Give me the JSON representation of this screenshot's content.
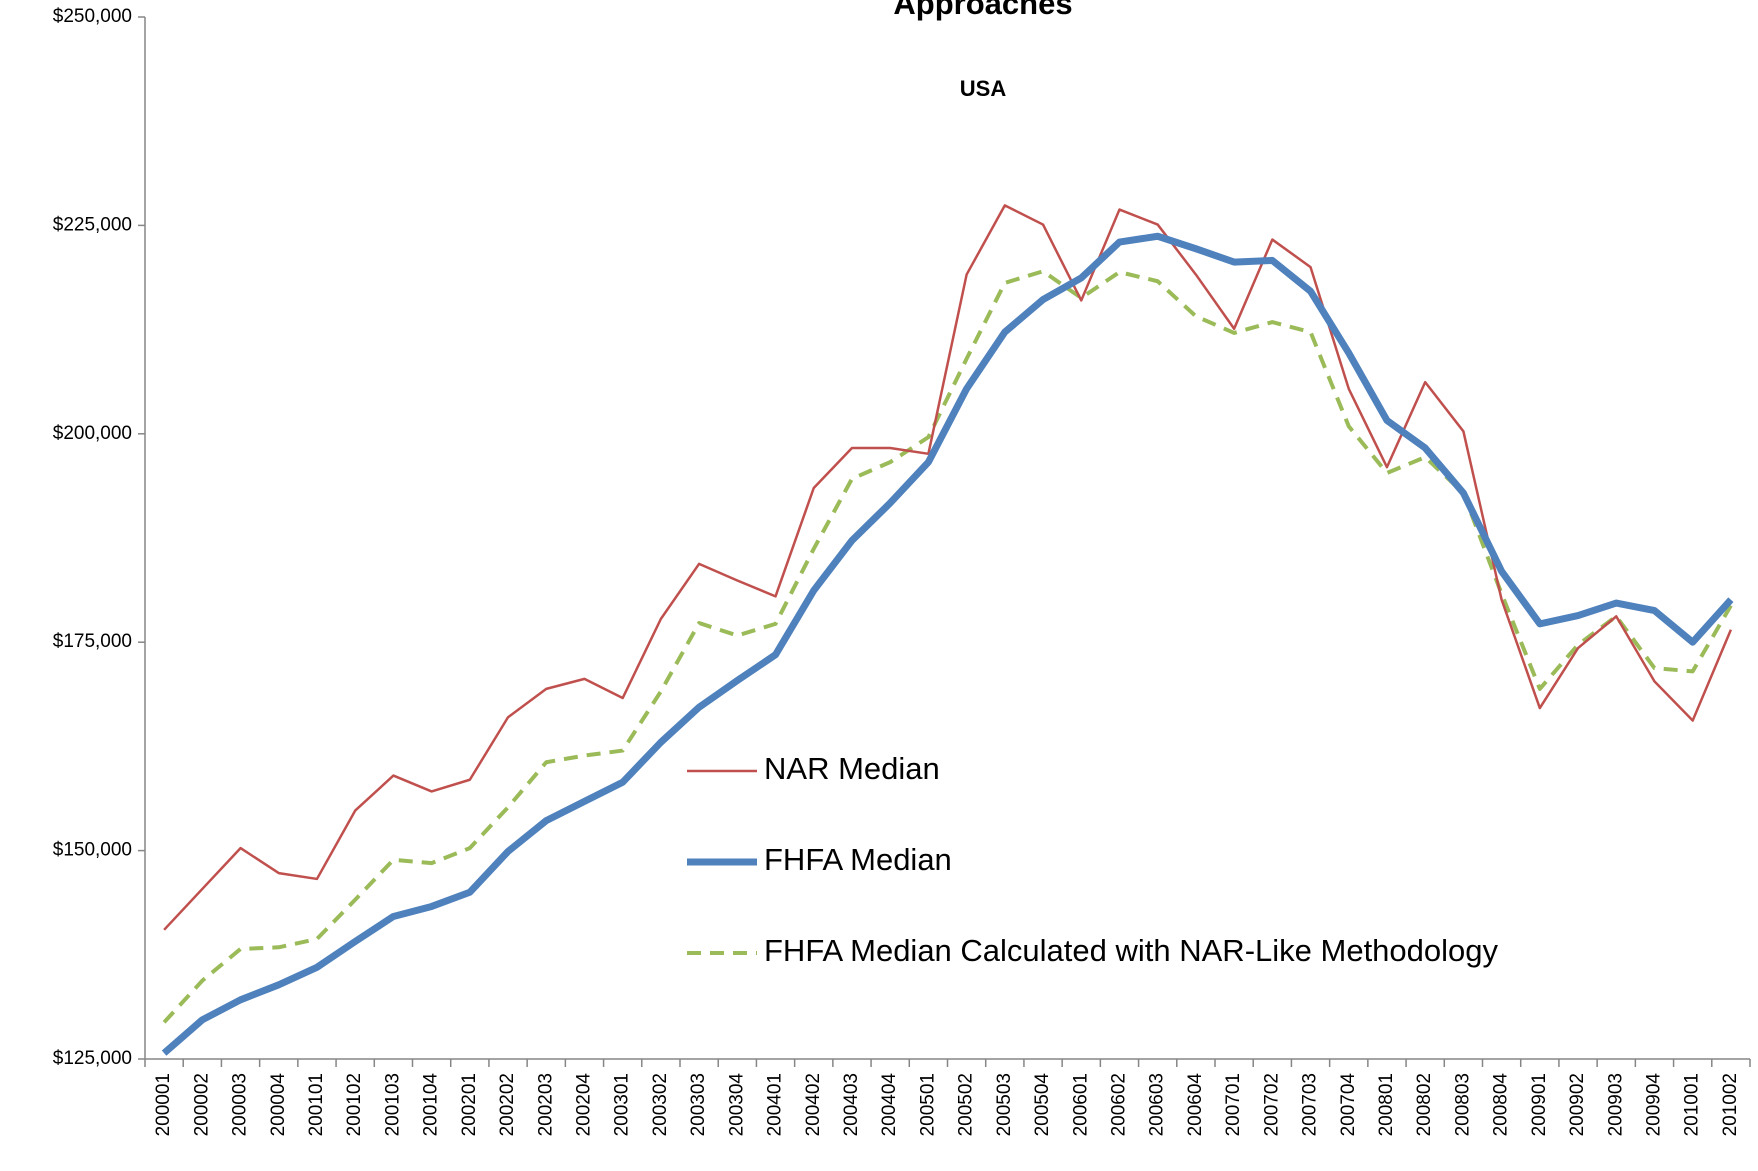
{
  "chart_data": {
    "type": "line",
    "title": "Approaches",
    "subtitle": "USA",
    "categories": [
      "200001",
      "200002",
      "200003",
      "200004",
      "200101",
      "200102",
      "200103",
      "200104",
      "200201",
      "200202",
      "200203",
      "200204",
      "200301",
      "200302",
      "200303",
      "200304",
      "200401",
      "200402",
      "200403",
      "200404",
      "200501",
      "200502",
      "200503",
      "200504",
      "200601",
      "200602",
      "200603",
      "200604",
      "200701",
      "200702",
      "200703",
      "200704",
      "200801",
      "200802",
      "200803",
      "200804",
      "200901",
      "200902",
      "200903",
      "200904",
      "201001",
      "201002"
    ],
    "series": [
      {
        "name": "NAR Median",
        "color": "#c0504d",
        "dashed": false,
        "values": [
          140500,
          145400,
          150300,
          147300,
          146600,
          154800,
          159000,
          157100,
          158500,
          166000,
          169400,
          170600,
          168300,
          177800,
          184400,
          182400,
          180500,
          193500,
          198300,
          198300,
          197600,
          219100,
          227400,
          225100,
          216000,
          226900,
          225100,
          219100,
          212600,
          223300,
          220000,
          205400,
          196000,
          206200,
          200300,
          180100,
          167100,
          174300,
          178100,
          170300,
          165600,
          176500
        ]
      },
      {
        "name": "FHFA Median",
        "color": "#4f81bd",
        "dashed": false,
        "values": [
          125700,
          129700,
          132100,
          133900,
          136000,
          139100,
          142100,
          143300,
          145000,
          149900,
          153600,
          155900,
          158200,
          163000,
          167200,
          170400,
          173500,
          181200,
          187200,
          191700,
          196600,
          205400,
          212200,
          216100,
          218700,
          223000,
          223700,
          222200,
          220600,
          220800,
          217100,
          209700,
          201600,
          198300,
          192900,
          183500,
          177200,
          178200,
          179700,
          178800,
          175000,
          180100
        ]
      },
      {
        "name": "FHFA Median Calculated with NAR-Like Methodology",
        "color": "#9bbb59",
        "dashed": true,
        "values": [
          129400,
          134400,
          138200,
          138400,
          139400,
          144100,
          148900,
          148500,
          150300,
          155200,
          160600,
          161400,
          162000,
          169100,
          177300,
          175800,
          177200,
          186200,
          194600,
          196600,
          199600,
          209000,
          218100,
          219500,
          216300,
          219400,
          218300,
          214100,
          212100,
          213400,
          212200,
          200900,
          195300,
          197200,
          192900,
          180800,
          169400,
          174700,
          178100,
          171900,
          171500,
          179400
        ]
      }
    ],
    "ylim": [
      125000,
      250000
    ],
    "yticks": [
      {
        "value": 125000,
        "label": "$125,000"
      },
      {
        "value": 150000,
        "label": "$150,000"
      },
      {
        "value": 175000,
        "label": "$175,000"
      },
      {
        "value": 200000,
        "label": "$200,000"
      },
      {
        "value": 225000,
        "label": "$225,000"
      },
      {
        "value": 250000,
        "label": "$250,000"
      }
    ]
  }
}
